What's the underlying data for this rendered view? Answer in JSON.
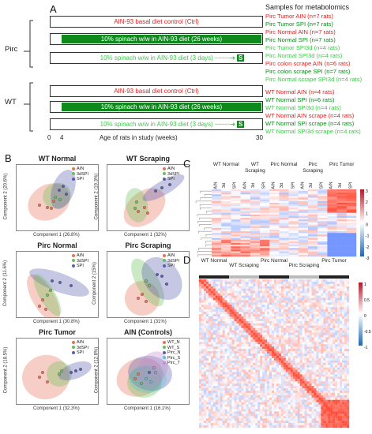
{
  "panels": {
    "a": "A",
    "b": "B",
    "c": "C",
    "d": "D"
  },
  "design": {
    "samples_header": "Samples for metabolomics",
    "group_pirc": "Pirc",
    "group_wt": "WT",
    "rows": [
      {
        "label": "AIN-93 basal diet control (Ctrl)",
        "color": "#e02020",
        "style": "box"
      },
      {
        "label": "10% spinach w/w in AIN-93 diet (26 weeks)",
        "color": "#0d8a1b",
        "style": "bar"
      },
      {
        "label": "10% spinach w/w in AIN-93 diet (3 days)",
        "color": "#3dc94a",
        "style": "box"
      },
      {
        "label": "AIN-93 basal diet control (Ctrl)",
        "color": "#e02020",
        "style": "box"
      },
      {
        "label": "10% spinach w/w in AIN-93 diet (26 weeks)",
        "color": "#0d8a1b",
        "style": "bar"
      },
      {
        "label": "10% spinach w/w in AIN-93 diet (3 days)",
        "color": "#3dc94a",
        "style": "box"
      }
    ],
    "s_label": "S",
    "axis_ticks": [
      "0",
      "4",
      "30"
    ],
    "axis_label": "Age of rats in study (weeks)",
    "samples_pirc": [
      {
        "text": "Pirc Tumor AIN (n=7 rats)",
        "color": "#e02020"
      },
      {
        "text": "Pirc Tumor SPI (n=7 rats)",
        "color": "#0d8a1b"
      },
      {
        "text": "Pirc Normal AIN (n=7 rats)",
        "color": "#e02020"
      },
      {
        "text": "Pirc Normal SPI (n=7 rats)",
        "color": "#0d8a1b"
      },
      {
        "text": "Pirc Tumor SPI3d (n=4 rats)",
        "color": "#3dc94a"
      },
      {
        "text": "Pirc Normal SPI3d (n=4 rats)",
        "color": "#3dc94a"
      },
      {
        "text": "Pirc colon scrape AIN (n=6 rats)",
        "color": "#e02020"
      },
      {
        "text": "Pirc colon scrape SPI (n=7 rats)",
        "color": "#0d8a1b"
      },
      {
        "text": "Pirc Normal scrape SPI3d (n=4 rats)",
        "color": "#3dc94a"
      }
    ],
    "samples_wt": [
      {
        "text": "WT Normal AIN (n=4 rats)",
        "color": "#e02020"
      },
      {
        "text": "WT Normal SPI (n=6 rats)",
        "color": "#0d8a1b"
      },
      {
        "text": "WT Normal SPI3d (n=4 rats)",
        "color": "#3dc94a"
      },
      {
        "text": "WT Normal AIN scrape (n=4 rats)",
        "color": "#e02020"
      },
      {
        "text": "WT Normal SPI scrape (n=4 rats)",
        "color": "#0d8a1b"
      },
      {
        "text": "WT Normal SPI3d scrape (n=4 rats)",
        "color": "#3dc94a"
      }
    ]
  },
  "pca": {
    "legend_3": [
      {
        "name": "AIN",
        "color": "#e8735a"
      },
      {
        "name": "3dSPI",
        "color": "#6cbf5a"
      },
      {
        "name": "SPI",
        "color": "#5a5fb0"
      }
    ],
    "legend_5": [
      {
        "name": "WT_N",
        "color": "#e8735a"
      },
      {
        "name": "WT_S",
        "color": "#6cbf5a"
      },
      {
        "name": "Pirc_N",
        "color": "#5a5fb0"
      },
      {
        "name": "Pirc_S",
        "color": "#5fc3c9"
      },
      {
        "name": "Pirc_T",
        "color": "#c48bd1"
      }
    ],
    "plots": [
      {
        "title": "WT Normal",
        "xlabel": "Component 1 (26.8%)",
        "ylabel": "Component 2 (20.6%)",
        "legend": "3"
      },
      {
        "title": "WT Scraping",
        "xlabel": "Component 1 (32%)",
        "ylabel": "Component 2 (19.3%)",
        "legend": "3"
      },
      {
        "title": "Pirc Normal",
        "xlabel": "Component 1 (30.8%)",
        "ylabel": "Component 2 (11.6%)",
        "legend": "3"
      },
      {
        "title": "Pirc Scraping",
        "xlabel": "Component 1 (31%)",
        "ylabel": "Component 2 (15%)",
        "legend": "3"
      },
      {
        "title": "Pirc Tumor",
        "xlabel": "Component 1 (32.3%)",
        "ylabel": "Component 2 (18.5%)",
        "legend": "3"
      },
      {
        "title": "AIN (Controls)",
        "xlabel": "Component 1 (16.1%)",
        "ylabel": "Component 2 (12.8%)",
        "legend": "5"
      }
    ]
  },
  "heatmap_c": {
    "groups": [
      "WT Normal",
      "WT Scraping",
      "Pirc Normal",
      "Pirc Scraping",
      "Pirc Tumor"
    ],
    "columns": [
      "AIN",
      "3d",
      "SPI",
      "AIN",
      "3d",
      "SPI",
      "AIN",
      "3d",
      "SPI",
      "AIN",
      "3d",
      "SPI",
      "AIN",
      "3d",
      "SPI"
    ],
    "scale_ticks": [
      "3",
      "2",
      "1",
      "0",
      "-1",
      "-2",
      "-3"
    ]
  },
  "heatmap_d": {
    "groups": [
      "WT Normal",
      "WT Scraping",
      "Pirc Normal",
      "Pirc Scraping",
      "Pirc Tumor"
    ],
    "scale_ticks": [
      "1",
      "0.5",
      "0",
      "-0.5",
      "-1"
    ]
  }
}
